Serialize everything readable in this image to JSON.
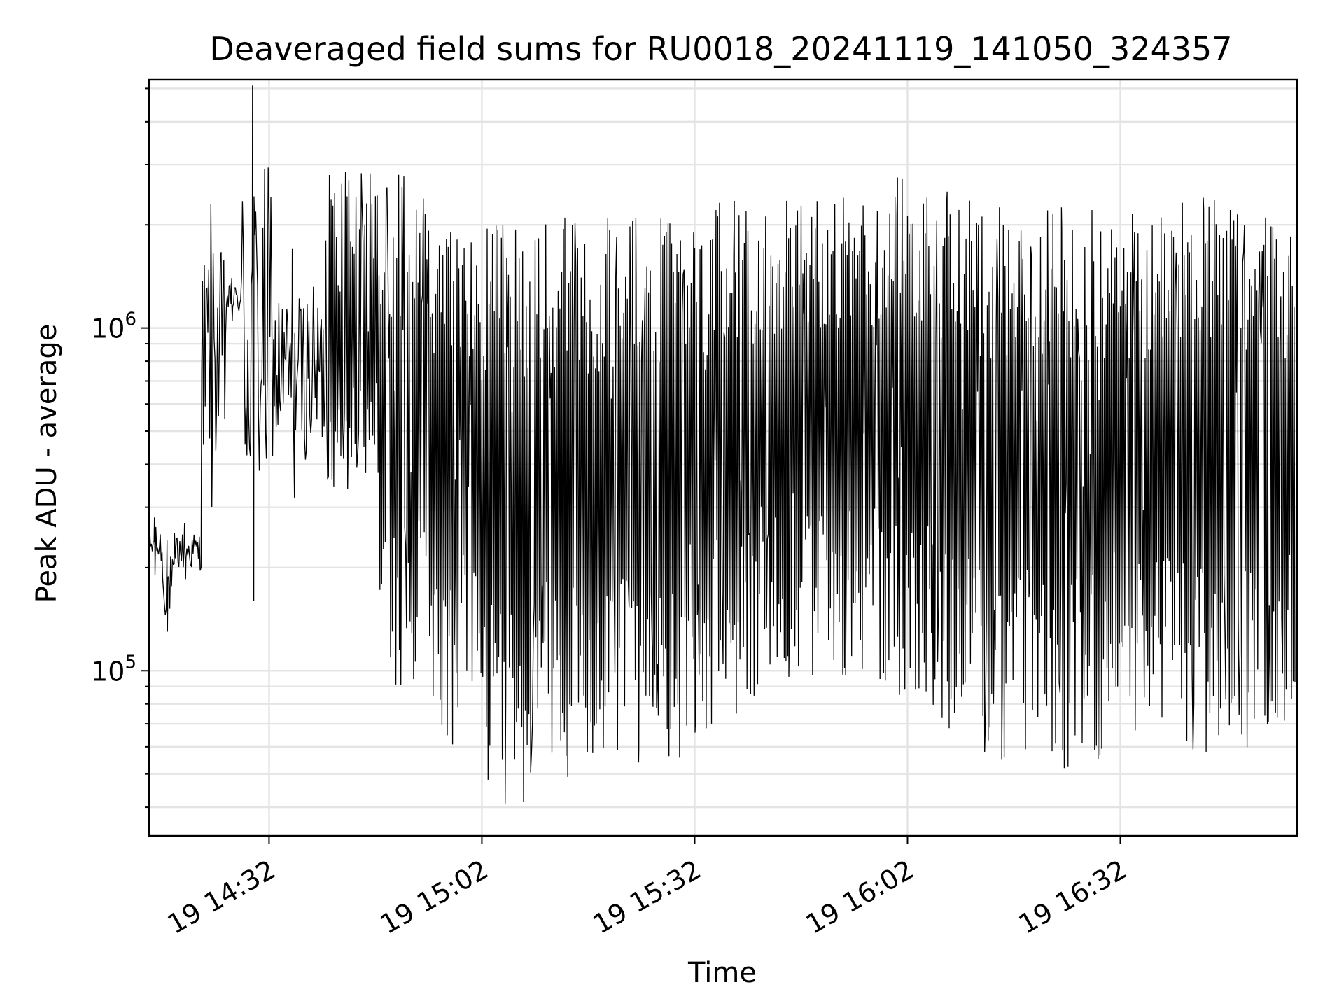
{
  "chart_data": {
    "type": "line",
    "title": "Deaveraged field sums for RU0018_20241119_141050_324357",
    "xlabel": "Time",
    "ylabel": "Peak ADU - average",
    "yscale": "log",
    "grid": true,
    "x_unit": "time of day (2024-11-19)",
    "xlim": [
      "14:15:05",
      "16:56:55"
    ],
    "ylim": [
      33000,
      5300000
    ],
    "x_ticks": [
      {
        "label": "19 14:32",
        "value": "14:32"
      },
      {
        "label": "19 15:02",
        "value": "15:02"
      },
      {
        "label": "19 15:32",
        "value": "15:32"
      },
      {
        "label": "19 16:02",
        "value": "16:02"
      },
      {
        "label": "19 16:32",
        "value": "16:32"
      }
    ],
    "y_ticks": [
      {
        "mantissa": "10",
        "exponent": "5",
        "value": 100000
      },
      {
        "mantissa": "10",
        "exponent": "6",
        "value": 1000000
      }
    ],
    "series": [
      {
        "color": "#000000",
        "segments": [
          {
            "start": "14:15:10",
            "end": "14:17:00",
            "lo": 190000,
            "hi": 280000
          },
          {
            "start": "14:17:00",
            "end": "14:18:40",
            "lo": 130000,
            "hi": 240000
          },
          {
            "start": "14:18:40",
            "end": "14:22:30",
            "lo": 185000,
            "hi": 270000
          },
          {
            "start": "14:22:30",
            "end": "14:26:00",
            "lo": 300000,
            "hi": 2300000
          },
          {
            "start": "14:26:00",
            "end": "14:28:00",
            "lo": 1050000,
            "hi": 1400000
          },
          {
            "start": "14:28:00",
            "end": "14:32:30",
            "lo": 160000,
            "hi": 5100000
          },
          {
            "start": "14:32:30",
            "end": "14:40:00",
            "lo": 320000,
            "hi": 1700000
          },
          {
            "start": "14:40:00",
            "end": "14:47:30",
            "lo": 340000,
            "hi": 2850000
          },
          {
            "start": "14:47:30",
            "end": "14:55:00",
            "lo": 91000,
            "hi": 2800000
          },
          {
            "start": "14:55:00",
            "end": "15:02:00",
            "lo": 61000,
            "hi": 1900000
          },
          {
            "start": "15:02:00",
            "end": "15:10:00",
            "lo": 41000,
            "hi": 2000000
          },
          {
            "start": "15:10:00",
            "end": "15:20:00",
            "lo": 49000,
            "hi": 2100000
          },
          {
            "start": "15:20:00",
            "end": "15:30:00",
            "lo": 54000,
            "hi": 2100000
          },
          {
            "start": "15:30:00",
            "end": "15:35:00",
            "lo": 66000,
            "hi": 1900000
          },
          {
            "start": "15:35:00",
            "end": "15:42:00",
            "lo": 75000,
            "hi": 2350000
          },
          {
            "start": "15:42:00",
            "end": "15:50:00",
            "lo": 96000,
            "hi": 2350000
          },
          {
            "start": "15:50:00",
            "end": "15:58:00",
            "lo": 97000,
            "hi": 2400000
          },
          {
            "start": "15:58:00",
            "end": "16:05:00",
            "lo": 85000,
            "hi": 2750000
          },
          {
            "start": "16:05:00",
            "end": "16:12:00",
            "lo": 68000,
            "hi": 2500000
          },
          {
            "start": "16:12:00",
            "end": "16:20:00",
            "lo": 55000,
            "hi": 2250000
          },
          {
            "start": "16:20:00",
            "end": "16:30:00",
            "lo": 52000,
            "hi": 2250000
          },
          {
            "start": "16:30:00",
            "end": "16:40:00",
            "lo": 67000,
            "hi": 2150000
          },
          {
            "start": "16:40:00",
            "end": "16:50:00",
            "lo": 58000,
            "hi": 2400000
          },
          {
            "start": "16:50:00",
            "end": "16:56:40",
            "lo": 70000,
            "hi": 2100000
          }
        ]
      }
    ]
  }
}
